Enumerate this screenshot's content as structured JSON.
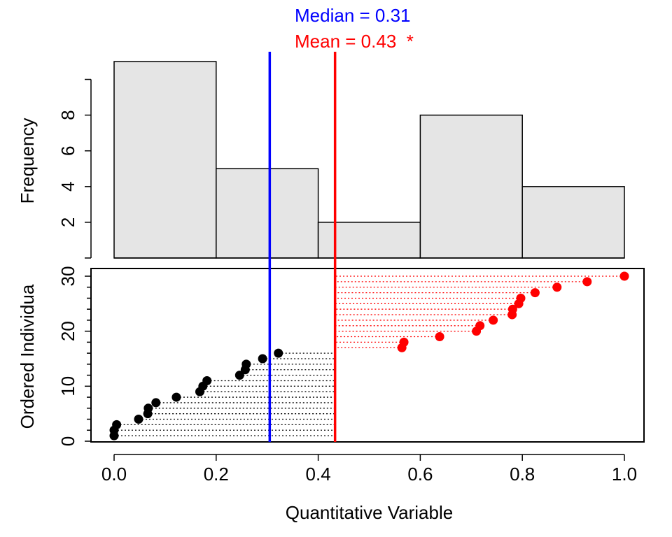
{
  "chart_data": [
    {
      "type": "bar",
      "panel": "histogram",
      "ylabel": "Frequency",
      "bins": [
        {
          "from": 0.0,
          "to": 0.2,
          "count": 11
        },
        {
          "from": 0.2,
          "to": 0.4,
          "count": 5
        },
        {
          "from": 0.4,
          "to": 0.6,
          "count": 2
        },
        {
          "from": 0.6,
          "to": 0.8,
          "count": 8
        },
        {
          "from": 0.8,
          "to": 1.0,
          "count": 4
        }
      ],
      "yticks": [
        "2",
        "4",
        "6",
        "8"
      ],
      "ylim": [
        0,
        11
      ],
      "bar_color": "#e5e5e5"
    },
    {
      "type": "scatter",
      "panel": "ordered-individuals",
      "xlabel": "Quantitative Variable",
      "ylabel": "Ordered Individua",
      "xlim": [
        0,
        1
      ],
      "ylim": [
        0,
        30
      ],
      "xticks": [
        "0.0",
        "0.2",
        "0.4",
        "0.6",
        "0.8",
        "1.0"
      ],
      "yticks": [
        "0",
        "10",
        "20",
        "30"
      ],
      "points": [
        {
          "x": 0.0,
          "y": 1
        },
        {
          "x": 0.0,
          "y": 2
        },
        {
          "x": 0.005,
          "y": 3
        },
        {
          "x": 0.048,
          "y": 4
        },
        {
          "x": 0.066,
          "y": 5
        },
        {
          "x": 0.067,
          "y": 6
        },
        {
          "x": 0.082,
          "y": 7
        },
        {
          "x": 0.122,
          "y": 8
        },
        {
          "x": 0.168,
          "y": 9
        },
        {
          "x": 0.174,
          "y": 10
        },
        {
          "x": 0.182,
          "y": 11
        },
        {
          "x": 0.246,
          "y": 12
        },
        {
          "x": 0.257,
          "y": 13
        },
        {
          "x": 0.259,
          "y": 14
        },
        {
          "x": 0.291,
          "y": 15
        },
        {
          "x": 0.322,
          "y": 16
        },
        {
          "x": 0.564,
          "y": 17
        },
        {
          "x": 0.568,
          "y": 18
        },
        {
          "x": 0.638,
          "y": 19
        },
        {
          "x": 0.71,
          "y": 20
        },
        {
          "x": 0.717,
          "y": 21
        },
        {
          "x": 0.743,
          "y": 22
        },
        {
          "x": 0.78,
          "y": 23
        },
        {
          "x": 0.781,
          "y": 24
        },
        {
          "x": 0.793,
          "y": 25
        },
        {
          "x": 0.797,
          "y": 26
        },
        {
          "x": 0.825,
          "y": 27
        },
        {
          "x": 0.868,
          "y": 28
        },
        {
          "x": 0.927,
          "y": 29
        },
        {
          "x": 1.0,
          "y": 30
        }
      ],
      "below_mean_color": "#000000",
      "above_mean_color": "#ff0000"
    }
  ],
  "stats": {
    "median_label": "Median = 0.31",
    "mean_label": "Mean = 0.43  *",
    "median_value": 0.305,
    "mean_value": 0.433,
    "median_color": "#0000ff",
    "mean_color": "#ff0000"
  }
}
